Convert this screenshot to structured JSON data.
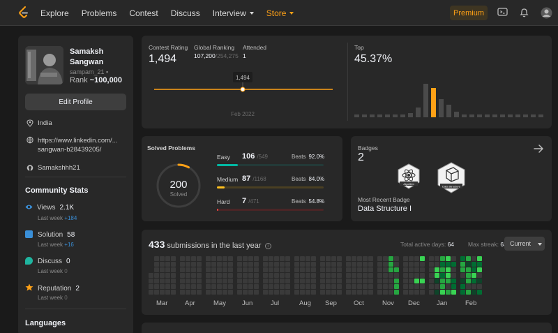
{
  "nav": {
    "links": [
      "Explore",
      "Problems",
      "Contest",
      "Discuss"
    ],
    "interview": "Interview",
    "store": "Store",
    "premium": "Premium",
    "accent": "#ffa116"
  },
  "profile": {
    "first_name": "Samaksh",
    "last_name": "Sangwan",
    "handle": "sampam_21",
    "rank_label": "Rank",
    "rank_value": "~100,000",
    "edit_label": "Edit Profile",
    "location": "India",
    "linkedin_line1": "https://www.linkedin.com/...",
    "linkedin_line2": "sangwan-b28439205/",
    "github": "Samakshhh21"
  },
  "community": {
    "title": "Community Stats",
    "views_label": "Views",
    "views_value": "2.1K",
    "views_week": "+184",
    "solution_label": "Solution",
    "solution_value": "58",
    "solution_week": "+16",
    "discuss_label": "Discuss",
    "discuss_value": "0",
    "discuss_week": "0",
    "reputation_label": "Reputation",
    "reputation_value": "2",
    "reputation_week": "0",
    "last_week": "Last week"
  },
  "languages_title": "Languages",
  "contest": {
    "rating_label": "Contest Rating",
    "rating": "1,494",
    "global_label": "Global Ranking",
    "global_rank": "107,200",
    "global_total": "/254,275",
    "attended_label": "Attended",
    "attended": "1",
    "tooltip": "1,494",
    "date": "Feb 2022",
    "top_label": "Top",
    "top_value": "45.37%",
    "histogram": [
      4,
      4,
      4,
      4,
      4,
      4,
      4,
      6,
      14,
      48,
      42,
      26,
      18,
      8,
      4,
      4,
      4,
      4,
      4,
      4,
      4,
      4,
      4,
      4,
      4
    ],
    "histogram_highlight": 10
  },
  "solved": {
    "title": "Solved Problems",
    "count": "200",
    "solved_label": "Solved",
    "beats_label": "Beats",
    "easy": {
      "label": "Easy",
      "count": "106",
      "total": "/549",
      "beats": "92.0%",
      "fraction": 0.193,
      "color": "#00b8a3"
    },
    "medium": {
      "label": "Medium",
      "count": "87",
      "total": "/1168",
      "beats": "84.0%",
      "fraction": 0.074,
      "color": "#ffc01e"
    },
    "hard": {
      "label": "Hard",
      "count": "7",
      "total": "/471",
      "beats": "54.8%",
      "fraction": 0.015,
      "color": "#ef4743"
    }
  },
  "badges": {
    "title": "Badges",
    "count": "2",
    "badge1": "Algorithm",
    "badge2": "Data Structure",
    "recent_label": "Most Recent Badge",
    "recent": "Data Structure I"
  },
  "submissions": {
    "count": "433",
    "label": "submissions in the last year",
    "active_label": "Total active days:",
    "active": "64",
    "streak_label": "Max streak:",
    "streak": "63",
    "current": "Current",
    "months": [
      "Mar",
      "Apr",
      "May",
      "Jun",
      "Jul",
      "Aug",
      "Sep",
      "Oct",
      "Nov",
      "Dec",
      "Jan",
      "Feb"
    ]
  }
}
